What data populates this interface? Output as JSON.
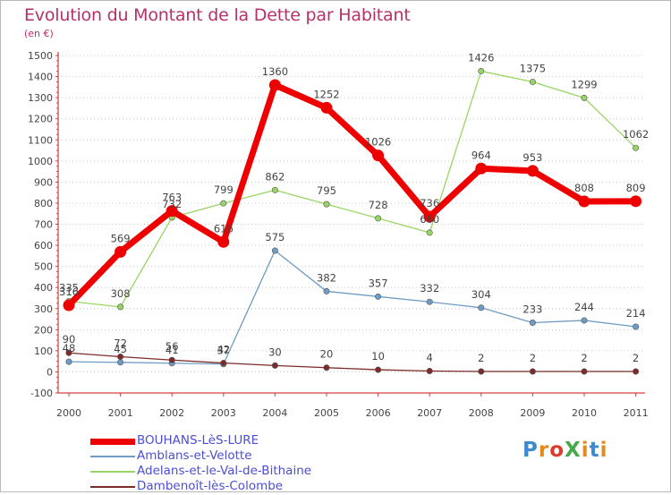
{
  "title": "Evolution du Montant de la Dette par Habitant",
  "unit": "(en €)",
  "logo": {
    "text": "ProXiti",
    "letters": [
      {
        "ch": "P",
        "color": "#3e8ad1"
      },
      {
        "ch": "r",
        "color": "#e58a1e"
      },
      {
        "ch": "o",
        "color": "#d93d2f"
      },
      {
        "ch": "X",
        "color": "#4aa84c"
      },
      {
        "ch": "i",
        "color": "#e58a1e"
      },
      {
        "ch": "t",
        "color": "#3e8ad1"
      },
      {
        "ch": "i",
        "color": "#e58a1e"
      }
    ]
  },
  "chart_data": {
    "type": "line",
    "title": "Evolution du Montant de la Dette par Habitant",
    "subtitle": "(en €)",
    "x": [
      "2000",
      "2001",
      "2002",
      "2003",
      "2004",
      "2005",
      "2006",
      "2007",
      "2008",
      "2009",
      "2010",
      "2011"
    ],
    "ylim": [
      -100,
      1500
    ],
    "yticks": [
      -100,
      0,
      100,
      200,
      300,
      400,
      500,
      600,
      700,
      800,
      900,
      1000,
      1100,
      1200,
      1300,
      1400,
      1500
    ],
    "grid": "horizontal-dotted",
    "legend_position": "bottom-left",
    "series": [
      {
        "name": "BOUHANS-LèS-LURE",
        "color": "#ee0000",
        "bold": true,
        "values": [
          316,
          569,
          763,
          616,
          1360,
          1252,
          1026,
          736,
          964,
          953,
          808,
          809
        ],
        "labels": [
          "316",
          "569",
          "763",
          "616",
          "1360",
          "1252",
          "1026",
          "736",
          "964",
          "953",
          "808",
          "809"
        ]
      },
      {
        "name": "Amblans-et-Velotte",
        "color": "#6f9cc4",
        "bold": false,
        "values": [
          48,
          45,
          41,
          37,
          575,
          382,
          357,
          332,
          304,
          233,
          244,
          214
        ],
        "labels": [
          "48",
          "45",
          "41",
          "37",
          "575",
          "382",
          "357",
          "332",
          "304",
          "233",
          "244",
          "214"
        ]
      },
      {
        "name": "Adelans-et-le-Val-de-Bithaine",
        "color": "#99d566",
        "bold": false,
        "values": [
          335,
          308,
          732,
          799,
          862,
          795,
          728,
          660,
          1426,
          1375,
          1299,
          1062
        ],
        "labels": [
          "335",
          "308",
          "732",
          "799",
          "862",
          "795",
          "728",
          "660",
          "1426",
          "1375",
          "1299",
          "1062"
        ]
      },
      {
        "name": "Dambenoît-lès-Colombe",
        "color": "#7c2a2a",
        "bold": false,
        "values": [
          90,
          72,
          56,
          42,
          30,
          20,
          10,
          4,
          2,
          2,
          2,
          2
        ],
        "labels": [
          "90",
          "72",
          "56",
          "42",
          "30",
          "20",
          "10",
          "4",
          "2",
          "2",
          "2",
          "2"
        ]
      }
    ]
  }
}
